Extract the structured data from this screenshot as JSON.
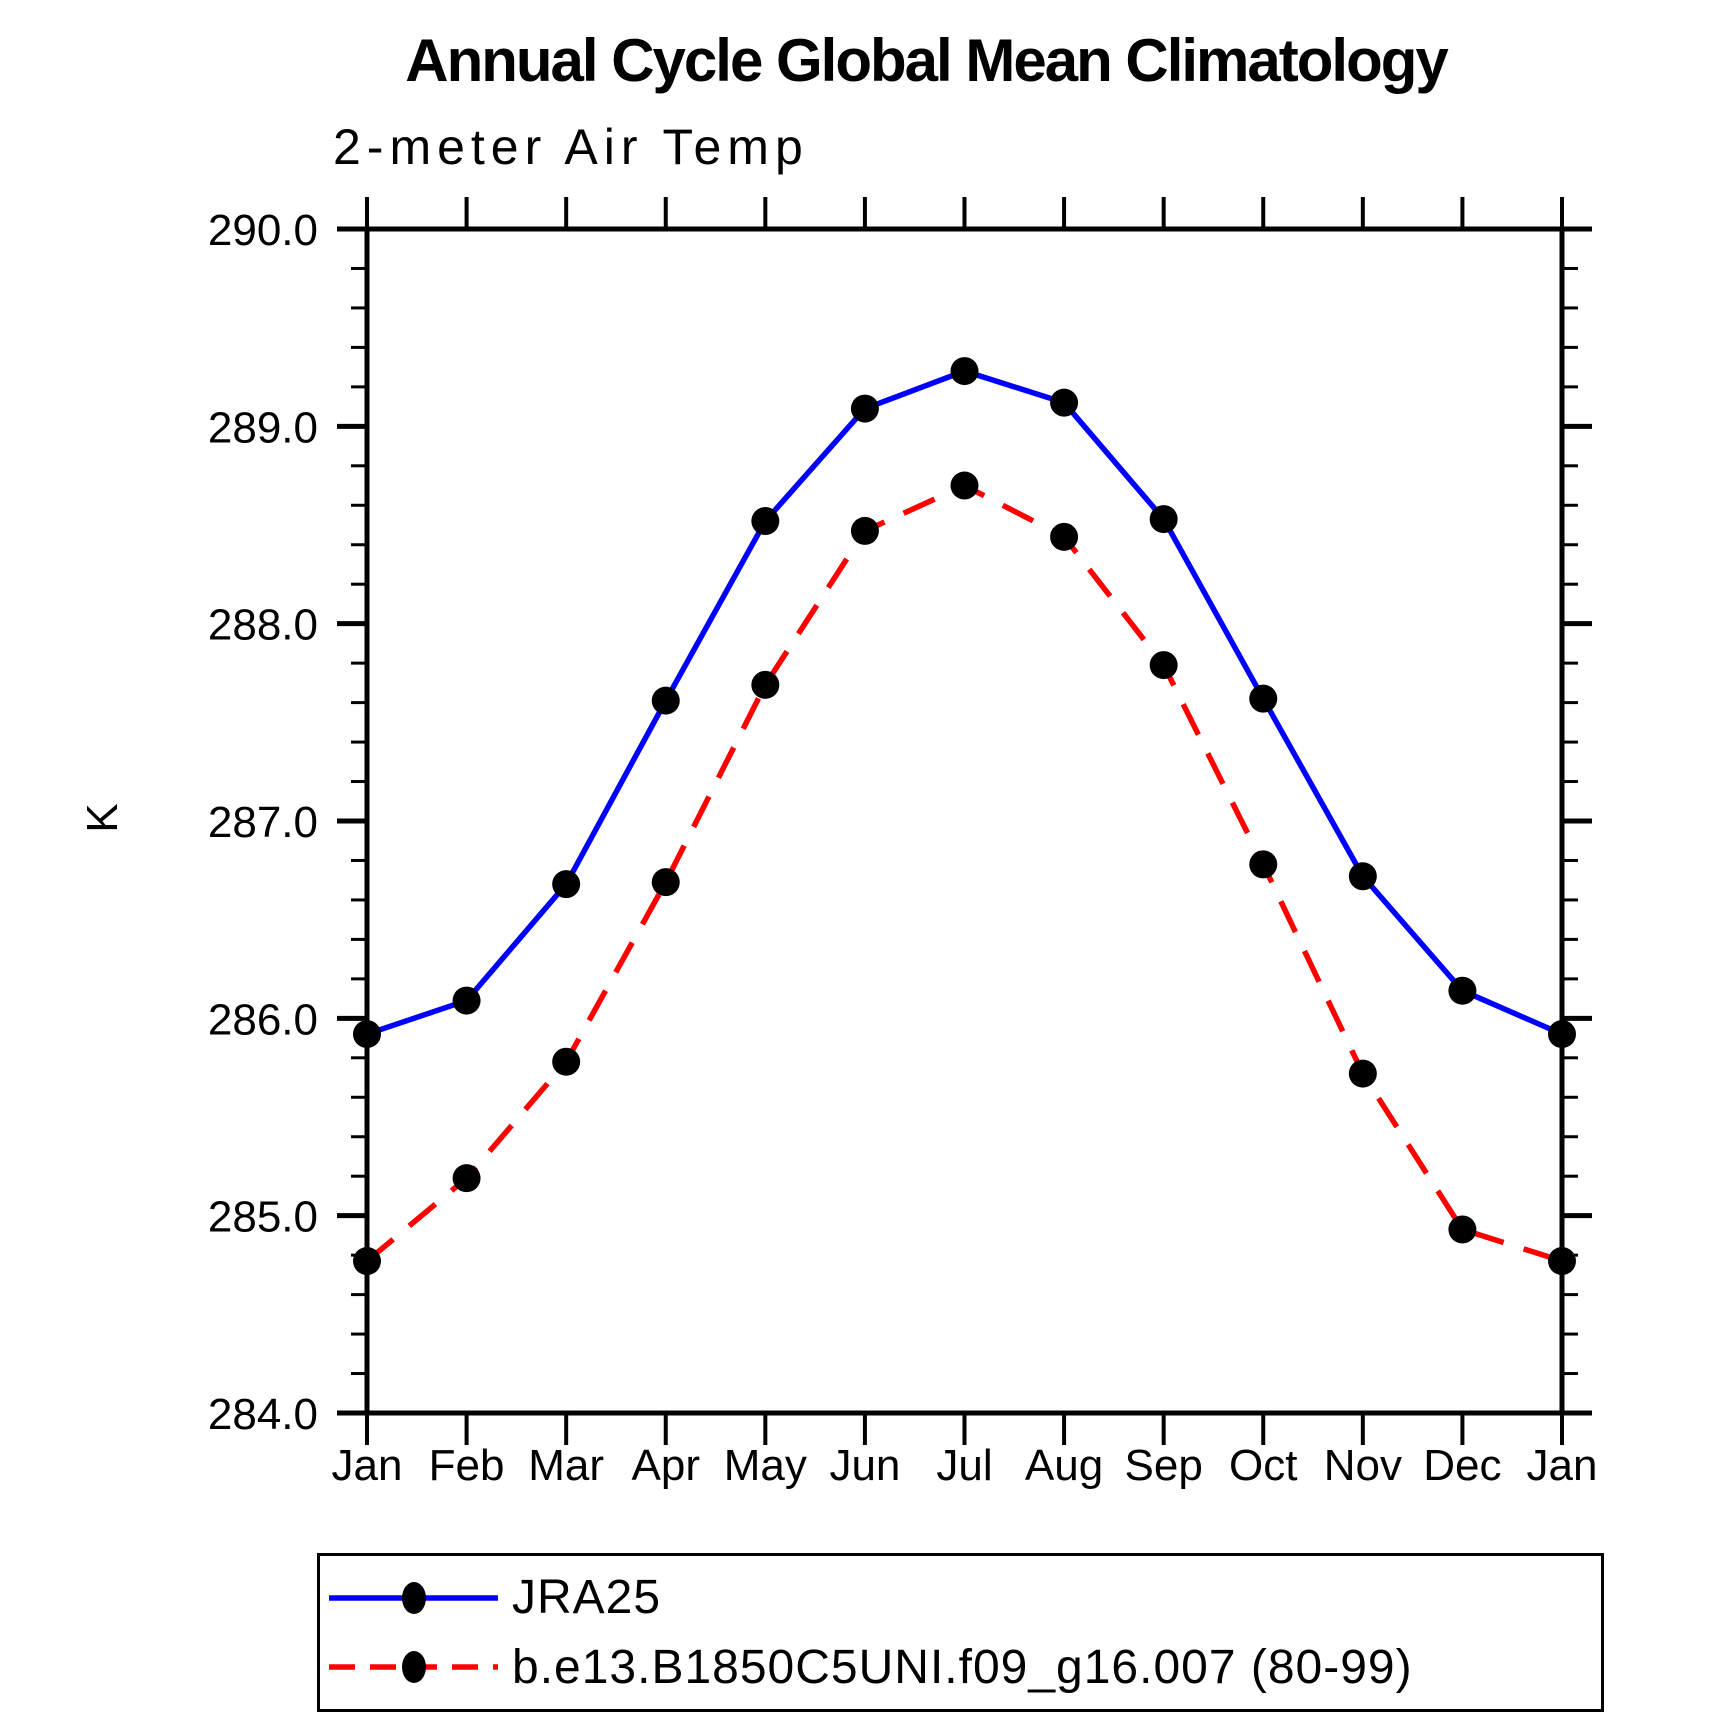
{
  "chart_data": {
    "type": "line",
    "title": "Annual Cycle Global Mean Climatology",
    "subtitle": "2-meter Air Temp",
    "ylabel": "K",
    "ylim": [
      284.0,
      290.0
    ],
    "y_major_tick_interval": 1.0,
    "y_minor_tick_interval": 0.2,
    "grid": false,
    "legend_position": "bottom",
    "y_tick_labels": [
      "290.0",
      "289.0",
      "288.0",
      "287.0",
      "286.0",
      "285.0",
      "284.0"
    ],
    "x_tick_labels": [
      "Jan",
      "Feb",
      "Mar",
      "Apr",
      "May",
      "Jun",
      "Jul",
      "Aug",
      "Sep",
      "Oct",
      "Nov",
      "Dec",
      "Jan"
    ],
    "series": [
      {
        "name": "JRA25",
        "color": "#0000ff",
        "line_style": "solid",
        "marker": "filled-circle",
        "marker_color": "#000000",
        "values": [
          285.92,
          286.09,
          286.68,
          287.61,
          288.52,
          289.09,
          289.28,
          289.12,
          288.53,
          287.62,
          286.72,
          286.14,
          285.92
        ]
      },
      {
        "name": "b.e13.B1850C5UNI.f09_g16.007 (80-99)",
        "color": "#ff0000",
        "line_style": "dashed",
        "marker": "filled-circle",
        "marker_color": "#000000",
        "values": [
          284.77,
          285.19,
          285.78,
          286.69,
          287.69,
          288.47,
          288.7,
          288.44,
          287.79,
          286.78,
          285.72,
          284.93,
          284.77
        ]
      }
    ]
  }
}
